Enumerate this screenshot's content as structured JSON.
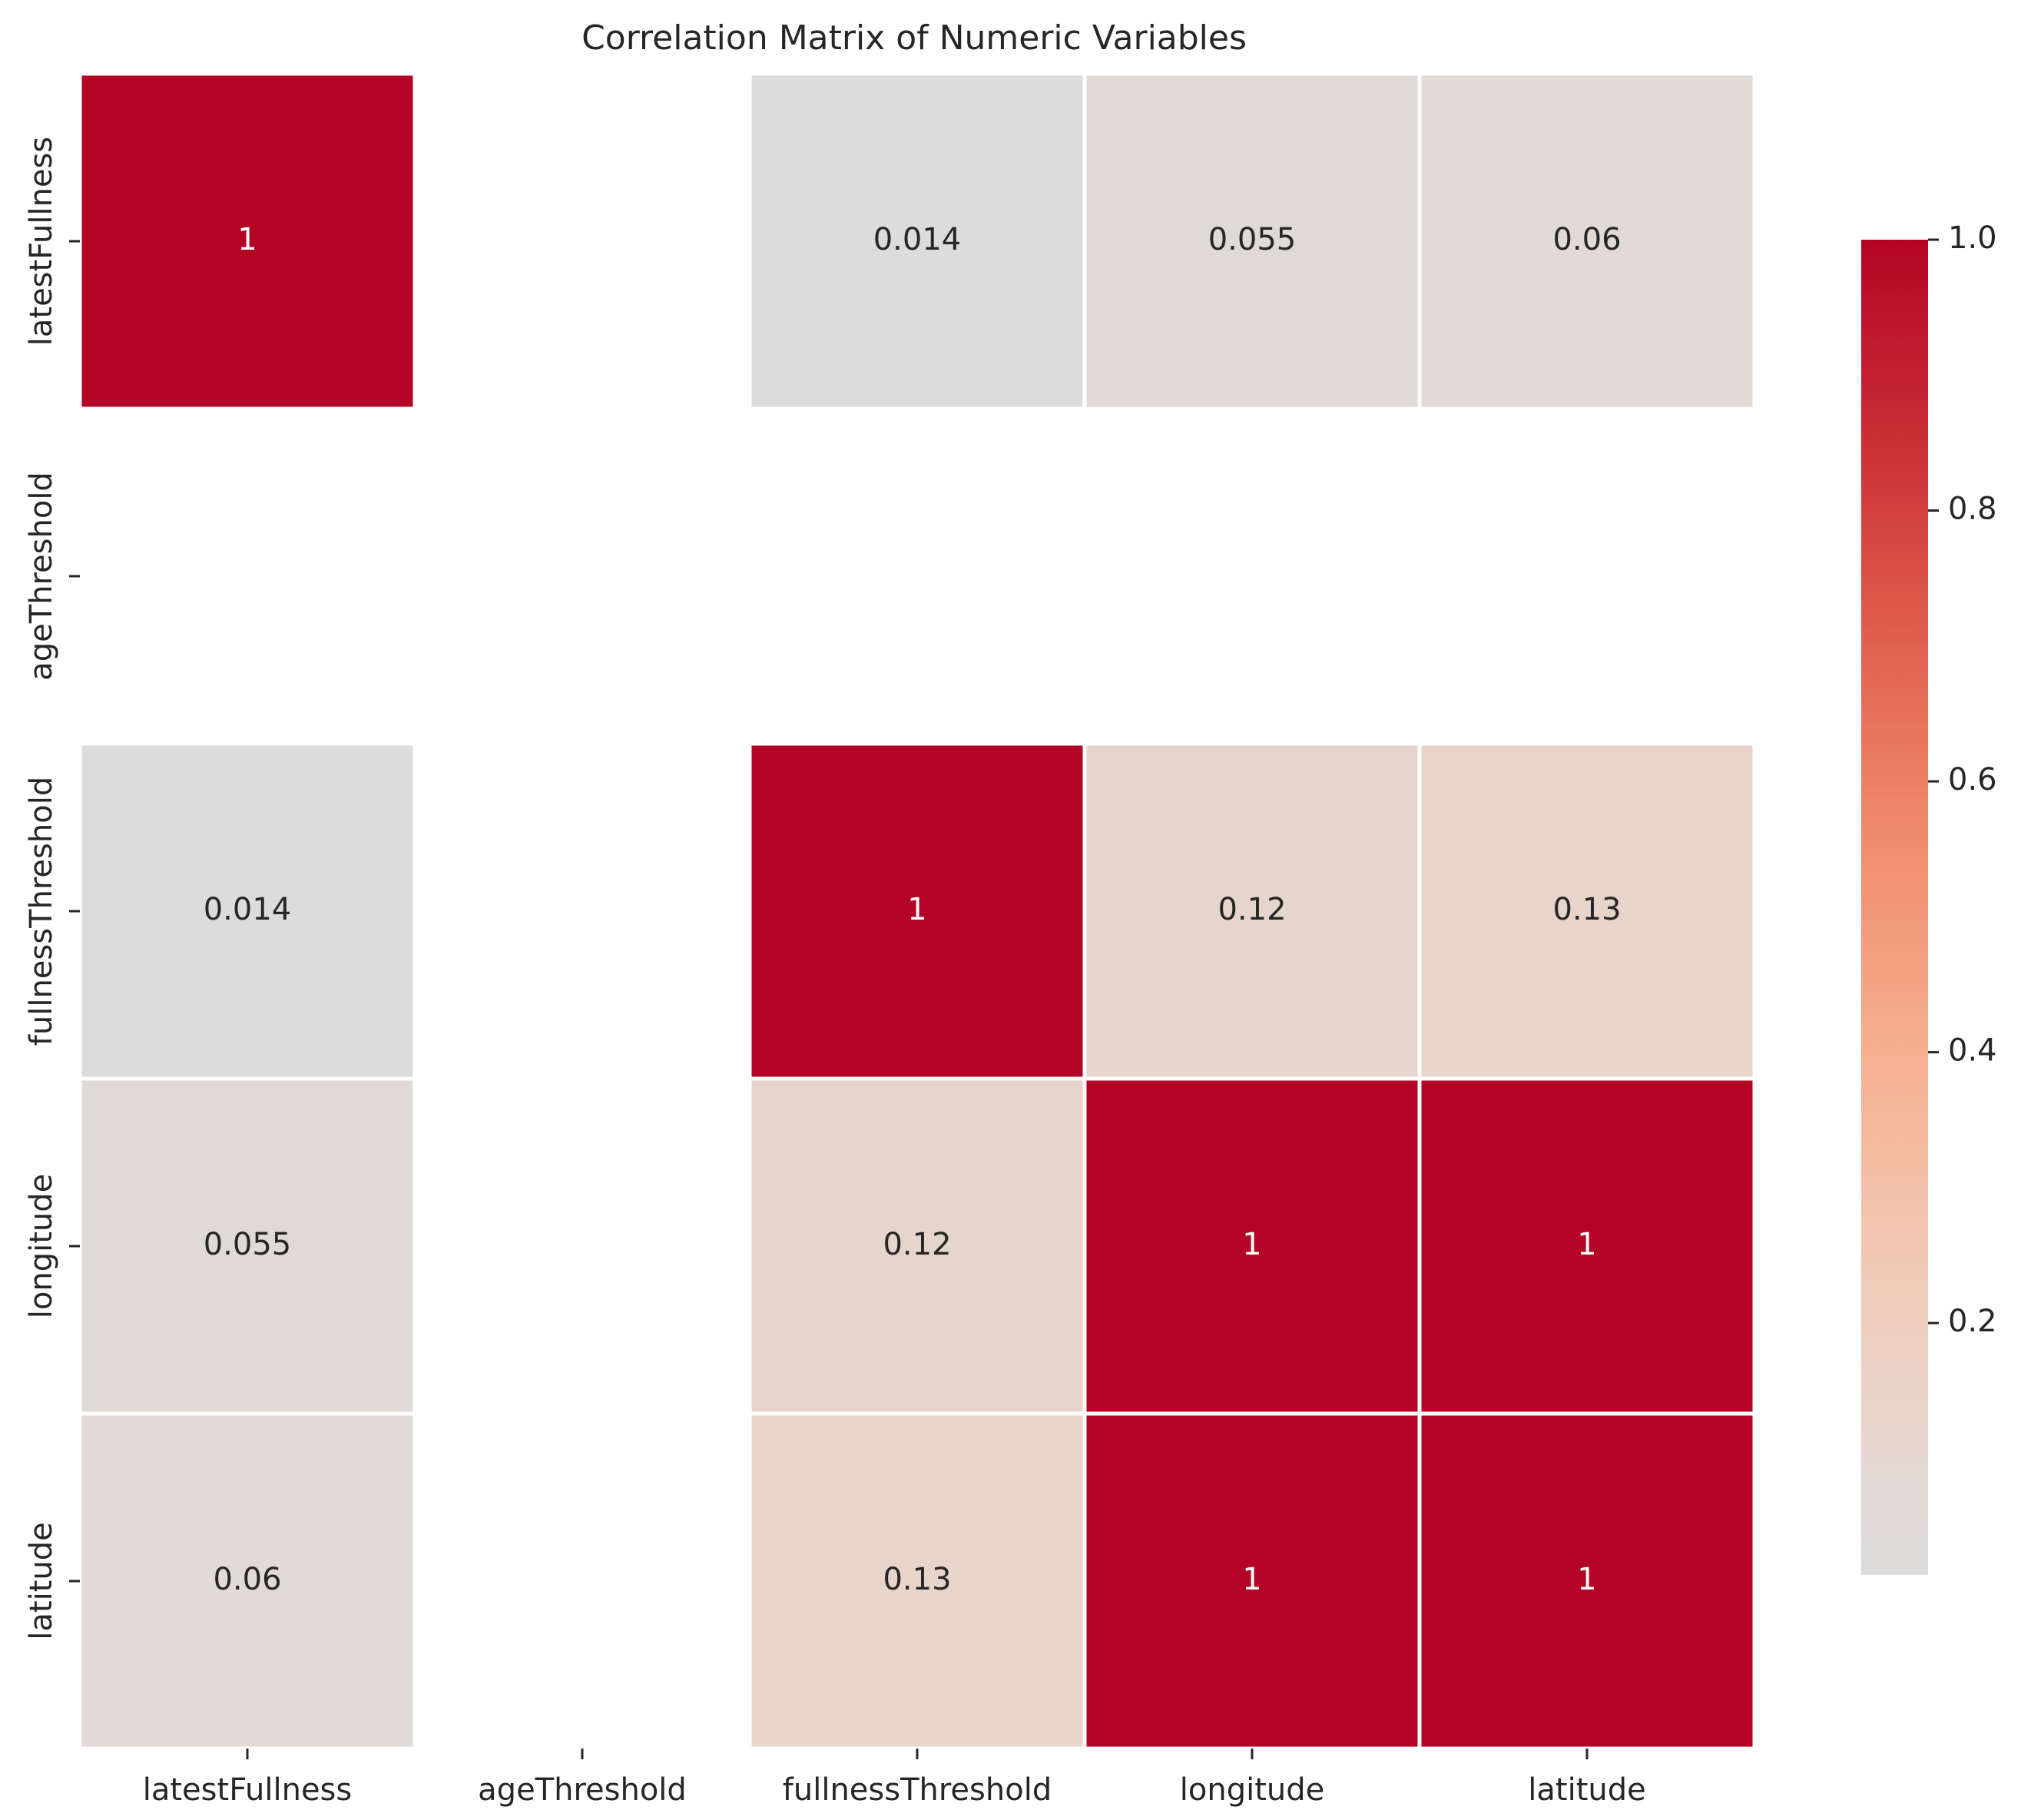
{
  "chart_data": {
    "type": "heatmap",
    "title": "Correlation Matrix of Numeric Variables",
    "xlabel": "",
    "ylabel": "",
    "x_categories": [
      "latestFullness",
      "ageThreshold",
      "fullnessThreshold",
      "longitude",
      "latitude"
    ],
    "y_categories": [
      "latestFullness",
      "ageThreshold",
      "fullnessThreshold",
      "longitude",
      "latitude"
    ],
    "values": [
      [
        1,
        null,
        0.014,
        0.055,
        0.06
      ],
      [
        null,
        null,
        null,
        null,
        null
      ],
      [
        0.014,
        null,
        1,
        0.12,
        0.13
      ],
      [
        0.055,
        null,
        0.12,
        1,
        1
      ],
      [
        0.06,
        null,
        0.13,
        1,
        1
      ]
    ],
    "annotations": [
      [
        "1",
        "",
        "0.014",
        "0.055",
        "0.06"
      ],
      [
        "",
        "",
        "",
        "",
        ""
      ],
      [
        "0.014",
        "",
        "1",
        "0.12",
        "0.13"
      ],
      [
        "0.055",
        "",
        "0.12",
        "1",
        "1"
      ],
      [
        "0.06",
        "",
        "0.13",
        "1",
        "1"
      ]
    ],
    "colorbar": {
      "range": [
        0.014,
        1.0
      ],
      "ticks": [
        0.2,
        0.4,
        0.6,
        0.8,
        1.0
      ],
      "tick_labels": [
        "0.2",
        "0.4",
        "0.6",
        "0.8",
        "1.0"
      ],
      "colormap": "coolwarm",
      "center": 0
    },
    "grid": false,
    "legend": "colorbar-right"
  }
}
